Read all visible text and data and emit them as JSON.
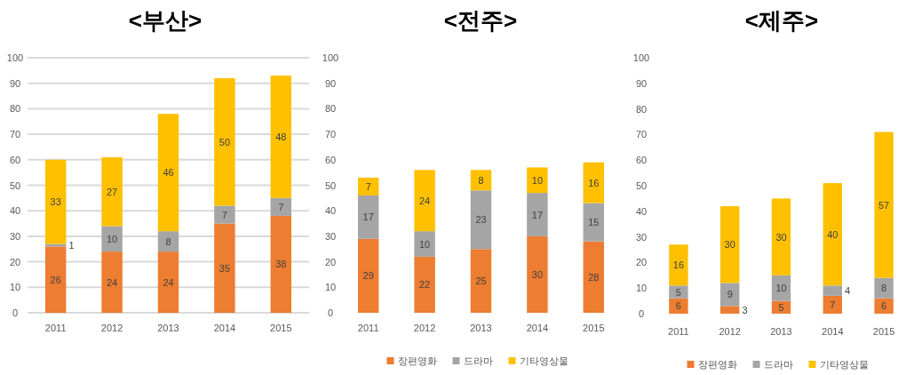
{
  "chart_data": [
    {
      "type": "bar",
      "title": "<부산>",
      "categories": [
        "2011",
        "2012",
        "2013",
        "2014",
        "2015"
      ],
      "stacked": true,
      "data_labels": true,
      "grid": "y",
      "ylim": [
        0,
        100
      ],
      "yticks": [
        0,
        10,
        20,
        30,
        40,
        50,
        60,
        70,
        80,
        90,
        100
      ],
      "series": [
        {
          "color": "#ed7d31",
          "values": [
            26,
            24,
            24,
            35,
            38
          ]
        },
        {
          "color": "#a5a5a5",
          "values": [
            1,
            10,
            8,
            7,
            7
          ]
        },
        {
          "color": "#ffc000",
          "values": [
            33,
            27,
            46,
            50,
            48
          ]
        }
      ]
    },
    {
      "type": "bar",
      "title": "<전주>",
      "categories": [
        "2011",
        "2012",
        "2013",
        "2014",
        "2015"
      ],
      "stacked": true,
      "data_labels": true,
      "grid": false,
      "legend": "bottom",
      "ylim": [
        0,
        100
      ],
      "yticks": [
        0,
        10,
        20,
        30,
        40,
        50,
        60,
        70,
        80,
        90,
        100
      ],
      "series": [
        {
          "name": "장편영화",
          "color": "#ed7d31",
          "values": [
            29,
            22,
            25,
            30,
            28
          ]
        },
        {
          "name": "드라마",
          "color": "#a5a5a5",
          "values": [
            17,
            10,
            23,
            17,
            15
          ]
        },
        {
          "name": "기타영상물",
          "color": "#ffc000",
          "values": [
            7,
            24,
            8,
            10,
            16
          ]
        }
      ]
    },
    {
      "type": "bar",
      "title": "<제주>",
      "categories": [
        "2011",
        "2012",
        "2013",
        "2014",
        "2015"
      ],
      "stacked": true,
      "data_labels": true,
      "grid": false,
      "legend": "bottom",
      "ylim": [
        0,
        100
      ],
      "yticks": [
        0,
        10,
        20,
        30,
        40,
        50,
        60,
        70,
        80,
        90,
        100
      ],
      "series": [
        {
          "name": "장편영화",
          "color": "#ed7d31",
          "values": [
            6,
            3,
            5,
            7,
            6
          ]
        },
        {
          "name": "드라마",
          "color": "#a5a5a5",
          "values": [
            5,
            9,
            10,
            4,
            8
          ]
        },
        {
          "name": "기타영상물",
          "color": "#ffc000",
          "values": [
            16,
            30,
            30,
            40,
            57
          ]
        }
      ]
    }
  ]
}
